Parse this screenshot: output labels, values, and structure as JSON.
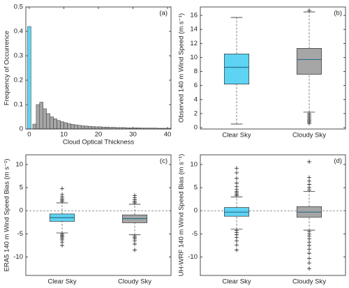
{
  "chart_data": [
    {
      "type": "histogram",
      "panel_label": "(a)",
      "xlabel": "Cloud Optical Thickness",
      "ylabel": "Frequency of Occurrence",
      "xlim": [
        -1,
        41
      ],
      "xticks": [
        0,
        10,
        20,
        30,
        40
      ],
      "ylim": [
        0,
        0.5
      ],
      "yticks": [
        0,
        0.1,
        0.2,
        0.3,
        0.4,
        0.5
      ],
      "series": [
        {
          "color": "#5ed3f3",
          "bins": [
            -0.5,
            0.5
          ],
          "values": [
            0.42
          ]
        },
        {
          "color": "#a6a6a6",
          "bins": [
            1,
            2,
            3,
            4,
            5,
            6,
            7,
            8,
            9,
            10,
            11,
            12,
            13,
            14,
            15,
            16,
            17,
            18,
            19,
            20,
            21,
            22,
            23,
            24,
            25,
            26,
            27,
            28,
            29,
            30,
            31,
            32,
            33,
            34,
            35,
            36,
            37,
            38,
            39,
            40,
            41
          ],
          "values": [
            0.02,
            0.1,
            0.11,
            0.083,
            0.063,
            0.05,
            0.042,
            0.035,
            0.03,
            0.026,
            0.022,
            0.019,
            0.017,
            0.015,
            0.013,
            0.012,
            0.011,
            0.01,
            0.009,
            0.009,
            0.008,
            0.008,
            0.007,
            0.007,
            0.006,
            0.006,
            0.006,
            0.005,
            0.005,
            0.005,
            0.005,
            0.004,
            0.004,
            0.004,
            0.004,
            0.004,
            0.003,
            0.003,
            0.003,
            0.003
          ]
        }
      ]
    },
    {
      "type": "box",
      "panel_label": "(b)",
      "ylabel": "Observed 140 m Wind Speed (m s⁻¹)",
      "categories": [
        "Clear Sky",
        "Cloudy Sky"
      ],
      "ylim": [
        -0.2,
        17.2
      ],
      "yticks": [
        0,
        2,
        4,
        6,
        8,
        10,
        12,
        14,
        16
      ],
      "boxes": [
        {
          "color": "#5ed3f3",
          "whisker_low": 0.5,
          "q1": 6.2,
          "median": 8.6,
          "q3": 10.5,
          "whisker_high": 15.7,
          "outliers": []
        },
        {
          "color": "#a6a6a6",
          "whisker_low": 2.2,
          "q1": 7.6,
          "median": 9.7,
          "q3": 11.3,
          "whisker_high": 16.5,
          "outliers": [
            2.0,
            1.8,
            1.6,
            1.4,
            1.2,
            1.0,
            0.8,
            0.6,
            16.7
          ]
        }
      ]
    },
    {
      "type": "box",
      "panel_label": "(c)",
      "ylabel": "ERA5 140 m Wind Speed Bias (m s⁻¹)",
      "categories": [
        "Clear Sky",
        "Cloudy Sky"
      ],
      "ylim": [
        -14,
        12.1
      ],
      "yticks": [
        -10,
        -5,
        0,
        5,
        10
      ],
      "refline": 0,
      "boxes": [
        {
          "color": "#5ed3f3",
          "whisker_low": -4.8,
          "q1": -2.3,
          "median": -1.5,
          "q3": -0.7,
          "whisker_high": 1.7,
          "outliers": [
            2.0,
            2.3,
            2.6,
            3.0,
            3.5,
            4.8,
            -5.0,
            -5.3,
            -5.6,
            -5.9,
            -6.3,
            -6.8,
            -7.5
          ]
        },
        {
          "color": "#a6a6a6",
          "whisker_low": -5.2,
          "q1": -2.6,
          "median": -1.7,
          "q3": -0.9,
          "whisker_high": 1.4,
          "outliers": [
            1.7,
            2.0,
            2.4,
            2.8,
            3.3,
            -5.5,
            -5.8,
            -6.1,
            -6.5,
            -7.2,
            -8.5
          ]
        }
      ]
    },
    {
      "type": "box",
      "panel_label": "(d)",
      "ylabel": "UH-WRF 140 m Wind Speed Bias (m s⁻¹)",
      "categories": [
        "Clear Sky",
        "Cloudy Sky"
      ],
      "ylim": [
        -14,
        12.1
      ],
      "yticks": [
        -10,
        -5,
        0,
        5,
        10
      ],
      "refline": 0,
      "boxes": [
        {
          "color": "#5ed3f3",
          "whisker_low": -4.0,
          "q1": -1.2,
          "median": -0.3,
          "q3": 0.7,
          "whisker_high": 3.0,
          "outliers": [
            3.3,
            3.6,
            3.9,
            4.2,
            4.6,
            5.2,
            6.0,
            7.0,
            8.2,
            9.2,
            -4.3,
            -4.7,
            -5.2,
            -5.8,
            -6.5,
            -7.4,
            -8.5
          ]
        },
        {
          "color": "#a6a6a6",
          "whisker_low": -4.2,
          "q1": -1.4,
          "median": -0.3,
          "q3": 0.9,
          "whisker_high": 4.2,
          "outliers": [
            4.5,
            5.0,
            5.7,
            6.4,
            7.2,
            10.6,
            -4.5,
            -5.0,
            -5.5,
            -6.1,
            -6.8,
            -7.5,
            -8.3,
            -9.2,
            -10.3,
            -11.3,
            -12.5
          ]
        }
      ]
    }
  ]
}
